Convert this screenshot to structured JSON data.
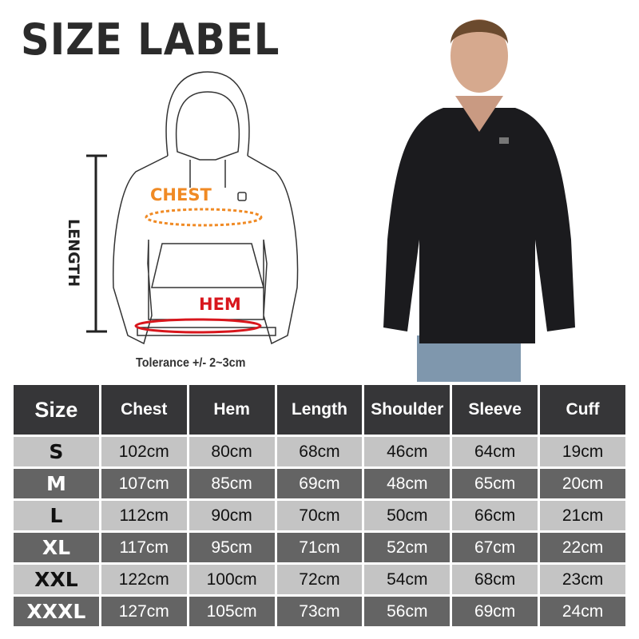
{
  "title": "SIZE LABEL",
  "diagram": {
    "length": "LENGTH",
    "chest": "CHEST",
    "hem": "HEM",
    "tolerance": "Tolerance +/- 2~3cm"
  },
  "colors": {
    "chest": "#f08a24",
    "hem": "#d8161c",
    "header_bg": "#363638",
    "row_light": "#c4c4c4",
    "row_dark": "#646464"
  },
  "table": {
    "headers": [
      "Size",
      "Chest",
      "Hem",
      "Length",
      "Shoulder",
      "Sleeve",
      "Cuff"
    ],
    "rows": [
      [
        "S",
        "102cm",
        "80cm",
        "68cm",
        "46cm",
        "64cm",
        "19cm"
      ],
      [
        "M",
        "107cm",
        "85cm",
        "69cm",
        "48cm",
        "65cm",
        "20cm"
      ],
      [
        "L",
        "112cm",
        "90cm",
        "70cm",
        "50cm",
        "66cm",
        "21cm"
      ],
      [
        "XL",
        "117cm",
        "95cm",
        "71cm",
        "52cm",
        "67cm",
        "22cm"
      ],
      [
        "XXL",
        "122cm",
        "100cm",
        "72cm",
        "54cm",
        "68cm",
        "23cm"
      ],
      [
        "XXXL",
        "127cm",
        "105cm",
        "73cm",
        "56cm",
        "69cm",
        "24cm"
      ]
    ]
  }
}
